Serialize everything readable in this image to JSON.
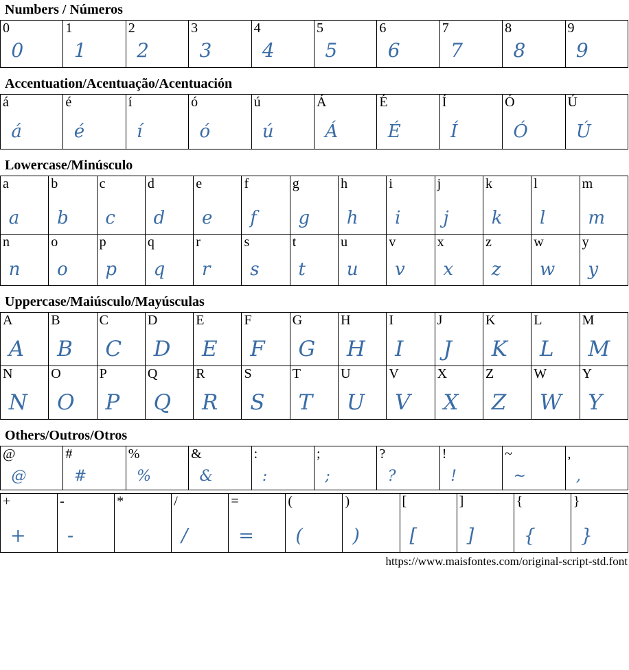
{
  "colors": {
    "glyph_blue": "#3a6ca5",
    "text_black": "#000000",
    "background": "#ffffff"
  },
  "footer": {
    "url": "https://www.maisfontes.com/original-script-std.font"
  },
  "no_script_glyph": [
    "*"
  ],
  "sections": [
    {
      "title": "Numbers / Números",
      "tables": [
        {
          "rows": [
            [
              "0",
              "1",
              "2",
              "3",
              "4",
              "5",
              "6",
              "7",
              "8",
              "9"
            ]
          ]
        }
      ]
    },
    {
      "title": "Accentuation/Acentuação/Acentuación",
      "tables": [
        {
          "rows": [
            [
              "á",
              "é",
              "í",
              "ó",
              "ú",
              "Á",
              "É",
              "Í",
              "Ó",
              "Ú"
            ]
          ]
        }
      ]
    },
    {
      "title": "Lowercase/Minúsculo",
      "tables": [
        {
          "rows": [
            [
              "a",
              "b",
              "c",
              "d",
              "e",
              "f",
              "g",
              "h",
              "i",
              "j",
              "k",
              "l",
              "m"
            ],
            [
              "n",
              "o",
              "p",
              "q",
              "r",
              "s",
              "t",
              "u",
              "v",
              "x",
              "z",
              "w",
              "y"
            ]
          ]
        }
      ]
    },
    {
      "title": "Uppercase/Maiúsculo/Mayúsculas",
      "tables": [
        {
          "rows": [
            [
              "A",
              "B",
              "C",
              "D",
              "E",
              "F",
              "G",
              "H",
              "I",
              "J",
              "K",
              "L",
              "M"
            ],
            [
              "N",
              "O",
              "P",
              "Q",
              "R",
              "S",
              "T",
              "U",
              "V",
              "X",
              "Z",
              "W",
              "Y"
            ]
          ]
        }
      ]
    },
    {
      "title": "Others/Outros/Otros",
      "tables": [
        {
          "rows": [
            [
              "@",
              "#",
              "%",
              "&",
              ":",
              ";",
              "?",
              "!",
              "~",
              ","
            ]
          ]
        },
        {
          "rows": [
            [
              "+",
              "-",
              "*",
              "/",
              "=",
              "(",
              ")",
              "[",
              "]",
              "{",
              "}"
            ]
          ]
        }
      ]
    }
  ]
}
